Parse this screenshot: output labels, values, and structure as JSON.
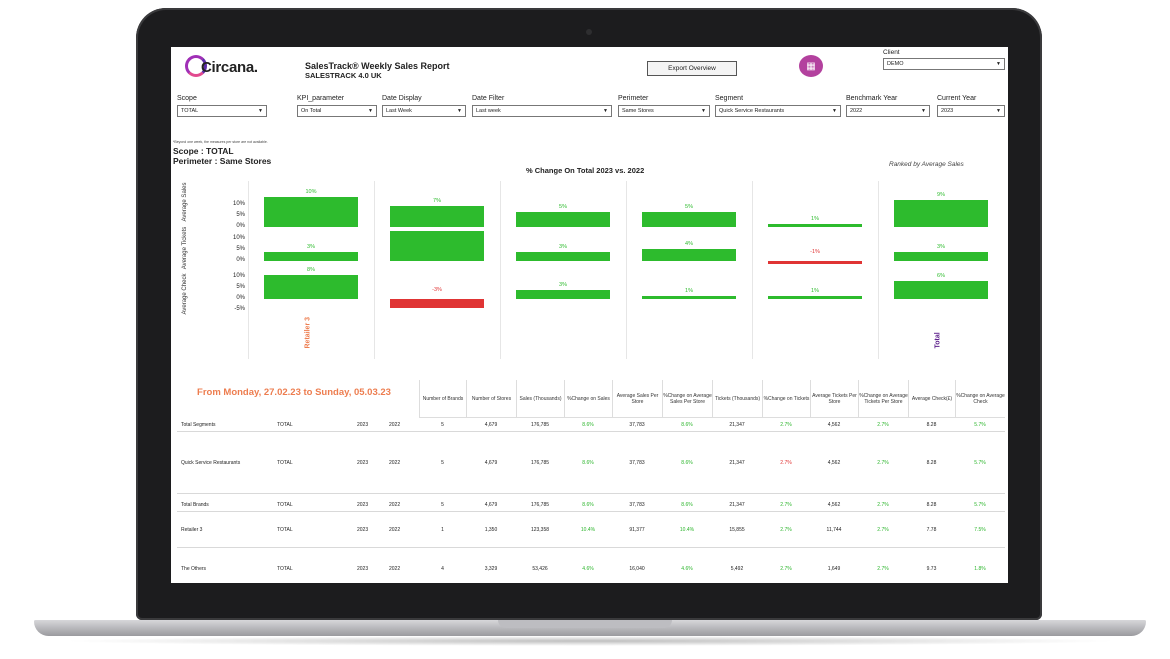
{
  "header": {
    "logo_text": "Circana.",
    "title": "SalesTrack® Weekly Sales Report",
    "subtitle": "SALESTRACK 4.0 UK",
    "export_label": "Export Overview",
    "client_label": "Client",
    "client_value": "DEMO"
  },
  "filters": [
    {
      "label": "Scope",
      "value": "TOTAL"
    },
    {
      "label": "KPI_parameter",
      "value": "On Total"
    },
    {
      "label": "Date Display",
      "value": "Last Week"
    },
    {
      "label": "Date Filter",
      "value": "Last week"
    },
    {
      "label": "Perimeter",
      "value": "Same Stores"
    },
    {
      "label": "Segment",
      "value": "Quick Service Restaurants"
    },
    {
      "label": "Benchmark Year",
      "value": "2022"
    },
    {
      "label": "Current Year",
      "value": "2023"
    }
  ],
  "summary": {
    "note": "*Beyond one week, the measures per store are not available.",
    "scope": "Scope : TOTAL",
    "perimeter": "Perimeter : Same Stores",
    "chart_title": "% Change On Total 2023 vs. 2022",
    "ranked": "Ranked by Average Sales"
  },
  "chart_data": {
    "type": "bar",
    "title": "% Change On Total 2023 vs. 2022",
    "rows": [
      "Average Sales",
      "Average Tickets",
      "Average Check"
    ],
    "columns": [
      "Retailer 3",
      "",
      "",
      "",
      "",
      "Total"
    ],
    "ticks": {
      "Average Sales": [
        "10%",
        "5%",
        "0%"
      ],
      "Average Tickets": [
        "10%",
        "5%",
        "0%"
      ],
      "Average Check": [
        "10%",
        "5%",
        "0%",
        "-5%"
      ]
    },
    "series": [
      {
        "name": "Average Sales",
        "values": [
          10,
          7,
          5,
          5,
          1,
          9
        ],
        "labels": [
          "10%",
          "7%",
          "5%",
          "5%",
          "1%",
          "9%"
        ]
      },
      {
        "name": "Average Tickets",
        "values": [
          3,
          10,
          3,
          4,
          -1,
          3
        ],
        "labels": [
          "3%",
          "10%",
          "3%",
          "4%",
          "-1%",
          "3%"
        ]
      },
      {
        "name": "Average Check",
        "values": [
          8,
          -3,
          3,
          1,
          1,
          6
        ],
        "labels": [
          "8%",
          "-3%",
          "3%",
          "1%",
          "1%",
          "6%"
        ]
      }
    ],
    "colors": {
      "positive": "#2dbb2d",
      "negative": "#e03434"
    }
  },
  "table": {
    "date_range": "From Monday, 27.02.23 to Sunday, 05.03.23",
    "columns": [
      "Number of Brands",
      "Number of Stores",
      "Sales (Thousands)",
      "%Change on Sales",
      "Average Sales Per Store",
      "%Change on Average Sales Per Store",
      "Tickets (Thousands)",
      "%Change on Tickets",
      "Average Tickets Per Store",
      "%Change on Average Tickets Per Store",
      "Average Check(£)",
      "%Change on Average Check"
    ],
    "rows": [
      {
        "name": "Total Segments",
        "scope": "TOTAL",
        "year": "2023",
        "bench": "2022",
        "values": [
          "5",
          "4,679",
          "176,785",
          "8.6%",
          "37,783",
          "8.6%",
          "21,347",
          "2.7%",
          "4,562",
          "2.7%",
          "8.28",
          "5.7%"
        ]
      },
      {
        "name": "Quick Service Restaurants",
        "scope": "TOTAL",
        "year": "2023",
        "bench": "2022",
        "values": [
          "5",
          "4,679",
          "176,785",
          "8.6%",
          "37,783",
          "8.6%",
          "21,347",
          "2.7%",
          "4,562",
          "2.7%",
          "8.28",
          "5.7%"
        ]
      },
      {
        "name": "Total Brands",
        "scope": "TOTAL",
        "year": "2023",
        "bench": "2022",
        "values": [
          "5",
          "4,679",
          "176,785",
          "8.6%",
          "37,783",
          "8.6%",
          "21,347",
          "2.7%",
          "4,562",
          "2.7%",
          "8.28",
          "5.7%"
        ]
      },
      {
        "name": "Retailer 3",
        "scope": "TOTAL",
        "year": "2023",
        "bench": "2022",
        "values": [
          "1",
          "1,350",
          "123,358",
          "10.4%",
          "91,377",
          "10.4%",
          "15,855",
          "2.7%",
          "11,744",
          "2.7%",
          "7.78",
          "7.5%"
        ]
      },
      {
        "name": "The Others",
        "scope": "TOTAL",
        "year": "2023",
        "bench": "2022",
        "values": [
          "4",
          "3,329",
          "53,426",
          "4.6%",
          "16,040",
          "4.6%",
          "5,492",
          "2.7%",
          "1,649",
          "2.7%",
          "9.73",
          "1.8%"
        ]
      }
    ]
  }
}
